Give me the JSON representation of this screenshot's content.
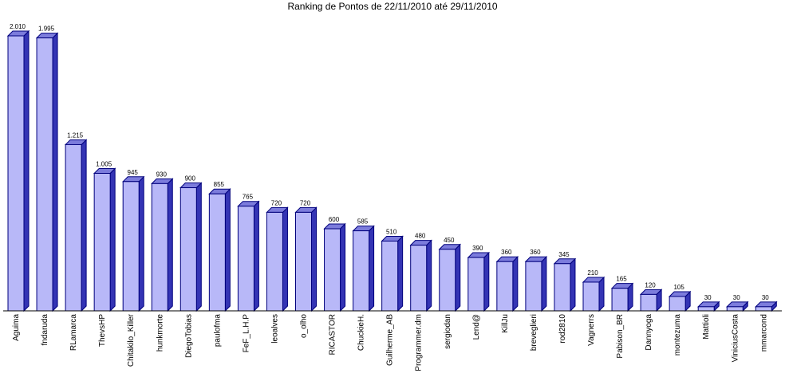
{
  "chart_data": {
    "type": "bar",
    "title": "Ranking de Pontos de 22/11/2010 até 29/11/2010",
    "xlabel": "",
    "ylabel": "",
    "ylim": [
      0,
      2010
    ],
    "grid": false,
    "legend": "none",
    "categories": [
      "Aguima",
      "fndaruda",
      "RLamarca",
      "ThevsHP",
      "Chitakilo_Killer",
      "hunkmorte",
      "DiegoTobias",
      "paulofma",
      "FeF_L.H.P",
      "leoalves",
      "o_olho",
      "RICASTOR",
      "ChuckieH.",
      "Guilherme_AB",
      "Programmer.dm",
      "sergiodan",
      "Lend@",
      "KillJu",
      "breveglieri",
      "rod2810",
      "Vagnerrs",
      "Pabison_BR",
      "Dannyoga",
      "montezuma",
      "Mattioli",
      "ViniciusCosta",
      "mmarcond"
    ],
    "values": [
      2010,
      1995,
      1215,
      1005,
      945,
      930,
      900,
      855,
      765,
      720,
      720,
      600,
      585,
      510,
      480,
      450,
      390,
      360,
      360,
      345,
      210,
      165,
      120,
      105,
      30,
      30,
      30
    ],
    "value_labels": [
      "2.010",
      "1.995",
      "1.215",
      "1.005",
      "945",
      "930",
      "900",
      "855",
      "765",
      "720",
      "720",
      "600",
      "585",
      "510",
      "480",
      "450",
      "390",
      "360",
      "360",
      "345",
      "210",
      "165",
      "120",
      "105",
      "30",
      "30",
      "30"
    ],
    "colors": {
      "bar_front": "#b8b8f8",
      "bar_side": "#3434b4",
      "bar_top": "#7c7cdc",
      "bar_stroke": "#00007c",
      "axis": "#000000"
    }
  }
}
